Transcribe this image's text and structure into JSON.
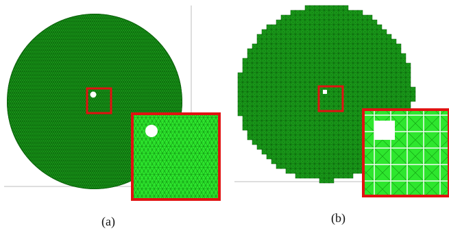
{
  "figure": {
    "captions": {
      "a": "(a)",
      "b": "(b)"
    },
    "colors": {
      "mesh_dark": "#0e7d0e",
      "mesh_fill": "#1a9a1a",
      "mesh_light": "#2ee62e",
      "highlight_box": "#e11111",
      "axis_line": "#bdbdbd",
      "hole": "#ffffff"
    }
  }
}
